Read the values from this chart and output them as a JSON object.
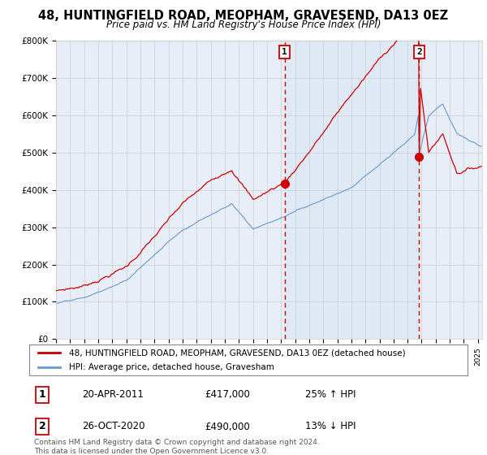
{
  "title": "48, HUNTINGFIELD ROAD, MEOPHAM, GRAVESEND, DA13 0EZ",
  "subtitle": "Price paid vs. HM Land Registry's House Price Index (HPI)",
  "legend_line1": "48, HUNTINGFIELD ROAD, MEOPHAM, GRAVESEND, DA13 0EZ (detached house)",
  "legend_line2": "HPI: Average price, detached house, Gravesham",
  "annotation1_date": "20-APR-2011",
  "annotation1_price": "£417,000",
  "annotation1_hpi": "25% ↑ HPI",
  "annotation1_year": 2011.25,
  "annotation1_value": 417000,
  "annotation2_date": "26-OCT-2020",
  "annotation2_price": "£490,000",
  "annotation2_hpi": "13% ↓ HPI",
  "annotation2_year": 2020.82,
  "annotation2_value": 490000,
  "footer": "Contains HM Land Registry data © Crown copyright and database right 2024.\nThis data is licensed under the Open Government Licence v3.0.",
  "red_color": "#cc0000",
  "blue_color": "#6699cc",
  "vline_color": "#cc0000",
  "background_color": "#e8eef8",
  "shade_color": "#dce8f5",
  "ylim": [
    0,
    800000
  ],
  "xlim_start": 1995,
  "xlim_end": 2025.3
}
